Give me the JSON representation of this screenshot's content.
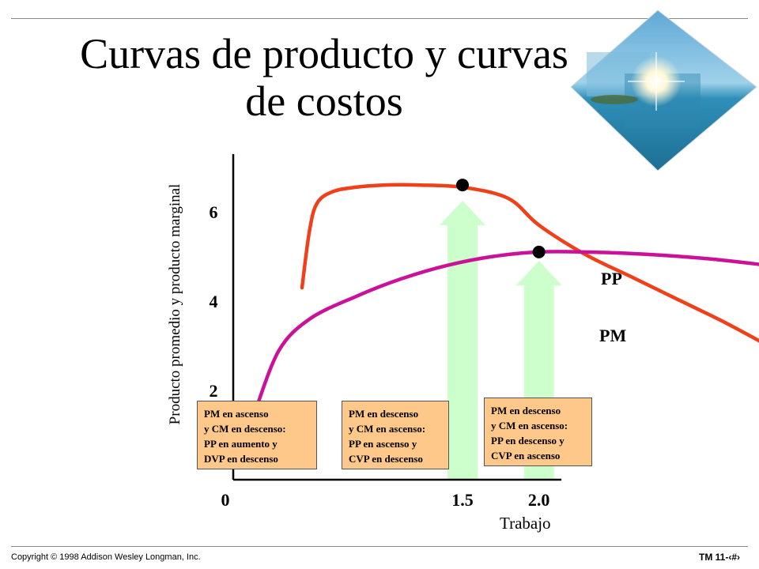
{
  "slide": {
    "title": "Curvas de producto y curvas de costos",
    "footer_left": "Copyright © 1998 Addison Wesley Longman, Inc.",
    "footer_right": "TM 11-‹#›"
  },
  "colors": {
    "pm_curve": "#f0401a",
    "pp_curve": "#cc1199",
    "arrow_fill": "#ccffcc",
    "note_fill": "#fec88a"
  },
  "decor": {
    "logo_icon": "tropical-beach-diamond-logo-icon"
  },
  "chart_data": {
    "type": "line",
    "xlabel": "Trabajo",
    "ylabel": "Producto promedio y producto marginal",
    "x_ticks": [
      "0",
      "1.5",
      "2.0"
    ],
    "x_tick_values": [
      0,
      1.5,
      2.0
    ],
    "y_ticks": [
      "2",
      "4",
      "6"
    ],
    "y_tick_values": [
      2,
      4,
      6
    ],
    "xlim": [
      0,
      3.6
    ],
    "ylim": [
      0,
      7.3
    ],
    "series": [
      {
        "name": "PM",
        "x": [
          0.45,
          0.5,
          0.55,
          0.65,
          0.8,
          1.0,
          1.2,
          1.5,
          1.8,
          2.0,
          2.3,
          2.6,
          2.9,
          3.2,
          3.5
        ],
        "y": [
          4.3,
          5.6,
          6.2,
          6.45,
          6.55,
          6.6,
          6.6,
          6.55,
          6.3,
          5.7,
          5.05,
          4.55,
          4.05,
          3.55,
          3.0
        ]
      },
      {
        "name": "PP",
        "x": [
          0.15,
          0.3,
          0.5,
          0.8,
          1.1,
          1.4,
          1.7,
          2.0,
          2.3,
          2.7,
          3.1,
          3.5
        ],
        "y": [
          1.6,
          2.9,
          3.6,
          4.1,
          4.5,
          4.8,
          5.0,
          5.1,
          5.1,
          5.05,
          4.95,
          4.8
        ]
      }
    ],
    "markers": [
      {
        "x": 1.5,
        "y": 6.6
      },
      {
        "x": 2.0,
        "y": 5.1
      }
    ],
    "arrows": [
      {
        "x": 1.5,
        "y_top": 6.25
      },
      {
        "x": 2.0,
        "y_top": 4.9
      }
    ],
    "annotations": [
      {
        "lines": [
          "PM en ascenso",
          "y CM en descenso:",
          "PP en aumento y",
          "DVP en descenso"
        ]
      },
      {
        "lines": [
          "PM en descenso",
          "y CM en ascenso:",
          "PP en ascenso y",
          "CVP en descenso"
        ]
      },
      {
        "lines": [
          "PM en descenso",
          "y CM en ascenso:",
          "PP en descenso y",
          "CVP en ascenso"
        ]
      }
    ]
  }
}
